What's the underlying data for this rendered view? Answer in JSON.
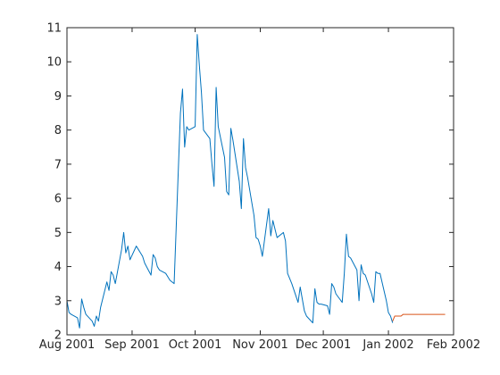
{
  "chart_data": {
    "type": "line",
    "title": "",
    "xlabel": "",
    "ylabel": "",
    "xlim": [
      "2001-08-01",
      "2002-02-01"
    ],
    "ylim": [
      2,
      11
    ],
    "grid": false,
    "x_ticks": [
      {
        "date": "2001-08-01",
        "label": "Aug 2001"
      },
      {
        "date": "2001-09-01",
        "label": "Sep 2001"
      },
      {
        "date": "2001-10-01",
        "label": "Oct 2001"
      },
      {
        "date": "2001-11-01",
        "label": "Nov 2001"
      },
      {
        "date": "2001-12-01",
        "label": "Dec 2001"
      },
      {
        "date": "2002-01-01",
        "label": "Jan 2002"
      },
      {
        "date": "2002-02-01",
        "label": "Feb 2002"
      }
    ],
    "y_ticks": [
      2,
      3,
      4,
      5,
      6,
      7,
      8,
      9,
      10,
      11
    ],
    "series": [
      {
        "color": "#0072BD",
        "points": [
          [
            "2001-08-01",
            3.0
          ],
          [
            "2001-08-02",
            2.65
          ],
          [
            "2001-08-03",
            2.6
          ],
          [
            "2001-08-06",
            2.5
          ],
          [
            "2001-08-07",
            2.2
          ],
          [
            "2001-08-08",
            3.05
          ],
          [
            "2001-08-09",
            2.8
          ],
          [
            "2001-08-10",
            2.6
          ],
          [
            "2001-08-13",
            2.4
          ],
          [
            "2001-08-14",
            2.25
          ],
          [
            "2001-08-15",
            2.55
          ],
          [
            "2001-08-16",
            2.4
          ],
          [
            "2001-08-17",
            2.8
          ],
          [
            "2001-08-20",
            3.55
          ],
          [
            "2001-08-21",
            3.3
          ],
          [
            "2001-08-22",
            3.85
          ],
          [
            "2001-08-23",
            3.75
          ],
          [
            "2001-08-24",
            3.5
          ],
          [
            "2001-08-27",
            4.5
          ],
          [
            "2001-08-28",
            5.0
          ],
          [
            "2001-08-29",
            4.4
          ],
          [
            "2001-08-30",
            4.6
          ],
          [
            "2001-08-31",
            4.2
          ],
          [
            "2001-09-03",
            4.6
          ],
          [
            "2001-09-04",
            4.5
          ],
          [
            "2001-09-05",
            4.4
          ],
          [
            "2001-09-06",
            4.3
          ],
          [
            "2001-09-07",
            4.1
          ],
          [
            "2001-09-10",
            3.75
          ],
          [
            "2001-09-11",
            4.35
          ],
          [
            "2001-09-12",
            4.25
          ],
          [
            "2001-09-13",
            4.0
          ],
          [
            "2001-09-14",
            3.9
          ],
          [
            "2001-09-17",
            3.8
          ],
          [
            "2001-09-18",
            3.7
          ],
          [
            "2001-09-19",
            3.6
          ],
          [
            "2001-09-20",
            3.55
          ],
          [
            "2001-09-21",
            3.5
          ],
          [
            "2001-09-24",
            8.5
          ],
          [
            "2001-09-25",
            9.2
          ],
          [
            "2001-09-26",
            7.5
          ],
          [
            "2001-09-27",
            8.1
          ],
          [
            "2001-09-28",
            8.0
          ],
          [
            "2001-10-01",
            8.1
          ],
          [
            "2001-10-02",
            10.8
          ],
          [
            "2001-10-03",
            9.9
          ],
          [
            "2001-10-04",
            9.1
          ],
          [
            "2001-10-05",
            8.0
          ],
          [
            "2001-10-08",
            7.75
          ],
          [
            "2001-10-09",
            7.0
          ],
          [
            "2001-10-10",
            6.35
          ],
          [
            "2001-10-11",
            9.25
          ],
          [
            "2001-10-12",
            8.1
          ],
          [
            "2001-10-15",
            7.2
          ],
          [
            "2001-10-16",
            6.2
          ],
          [
            "2001-10-17",
            6.1
          ],
          [
            "2001-10-18",
            8.05
          ],
          [
            "2001-10-19",
            7.7
          ],
          [
            "2001-10-22",
            6.5
          ],
          [
            "2001-10-23",
            5.7
          ],
          [
            "2001-10-24",
            7.75
          ],
          [
            "2001-10-25",
            6.9
          ],
          [
            "2001-10-26",
            6.6
          ],
          [
            "2001-10-29",
            5.5
          ],
          [
            "2001-10-30",
            4.85
          ],
          [
            "2001-10-31",
            4.8
          ],
          [
            "2001-11-01",
            4.6
          ],
          [
            "2001-11-02",
            4.3
          ],
          [
            "2001-11-05",
            5.7
          ],
          [
            "2001-11-06",
            4.9
          ],
          [
            "2001-11-07",
            5.35
          ],
          [
            "2001-11-08",
            5.1
          ],
          [
            "2001-11-09",
            4.85
          ],
          [
            "2001-11-12",
            5.0
          ],
          [
            "2001-11-13",
            4.75
          ],
          [
            "2001-11-14",
            3.8
          ],
          [
            "2001-11-15",
            3.65
          ],
          [
            "2001-11-16",
            3.5
          ],
          [
            "2001-11-19",
            2.95
          ],
          [
            "2001-11-20",
            3.4
          ],
          [
            "2001-11-21",
            3.05
          ],
          [
            "2001-11-22",
            2.7
          ],
          [
            "2001-11-23",
            2.55
          ],
          [
            "2001-11-26",
            2.35
          ],
          [
            "2001-11-27",
            3.35
          ],
          [
            "2001-11-28",
            2.95
          ],
          [
            "2001-11-29",
            2.9
          ],
          [
            "2001-11-30",
            2.9
          ],
          [
            "2001-12-03",
            2.85
          ],
          [
            "2001-12-04",
            2.6
          ],
          [
            "2001-12-05",
            3.5
          ],
          [
            "2001-12-06",
            3.4
          ],
          [
            "2001-12-07",
            3.2
          ],
          [
            "2001-12-10",
            2.95
          ],
          [
            "2001-12-11",
            3.8
          ],
          [
            "2001-12-12",
            4.95
          ],
          [
            "2001-12-13",
            4.3
          ],
          [
            "2001-12-14",
            4.25
          ],
          [
            "2001-12-17",
            3.9
          ],
          [
            "2001-12-18",
            3.0
          ],
          [
            "2001-12-19",
            4.05
          ],
          [
            "2001-12-20",
            3.8
          ],
          [
            "2001-12-21",
            3.75
          ],
          [
            "2001-12-24",
            3.2
          ],
          [
            "2001-12-25",
            2.95
          ],
          [
            "2001-12-26",
            3.85
          ],
          [
            "2001-12-27",
            3.8
          ],
          [
            "2001-12-28",
            3.8
          ],
          [
            "2001-12-31",
            3.0
          ],
          [
            "2002-01-01",
            2.65
          ],
          [
            "2002-01-02",
            2.55
          ],
          [
            "2002-01-03",
            2.35
          ]
        ]
      },
      {
        "color": "#D95319",
        "points": [
          [
            "2002-01-03",
            2.4
          ],
          [
            "2002-01-04",
            2.55
          ],
          [
            "2002-01-07",
            2.55
          ],
          [
            "2002-01-08",
            2.6
          ],
          [
            "2002-01-14",
            2.6
          ],
          [
            "2002-01-21",
            2.6
          ],
          [
            "2002-01-28",
            2.6
          ]
        ]
      }
    ]
  }
}
